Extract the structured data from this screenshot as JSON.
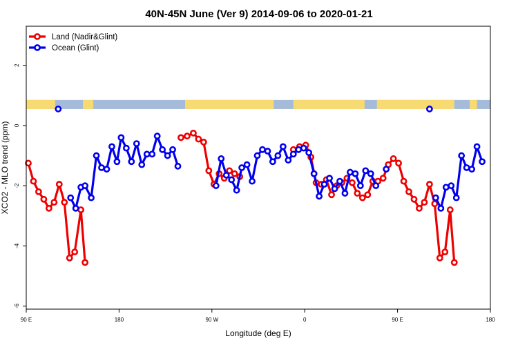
{
  "chart_data": {
    "type": "line",
    "title": "40N-45N June (Ver 9)   2014-09-06 to 2020-01-21",
    "xlabel": "Longitude (deg E)",
    "ylabel": "XCO2 - MLO trend (ppm)",
    "xlim": [
      90,
      540
    ],
    "ylim": [
      -6.1,
      3.3
    ],
    "x_ticks": [
      {
        "value": 90,
        "label": "90 E"
      },
      {
        "value": 180,
        "label": "180"
      },
      {
        "value": 270,
        "label": "90 W"
      },
      {
        "value": 360,
        "label": "0"
      },
      {
        "value": 450,
        "label": "90 E"
      },
      {
        "value": 540,
        "label": "180"
      }
    ],
    "y_ticks": [
      {
        "value": 2,
        "label": "2"
      },
      {
        "value": 0,
        "label": "0"
      },
      {
        "value": -2,
        "label": "-2"
      },
      {
        "value": -4,
        "label": "-4"
      },
      {
        "value": -6,
        "label": "-6"
      }
    ],
    "grid": false,
    "legend_position": "top-left",
    "land_strip": {
      "y_range": [
        0.55,
        0.85
      ],
      "ocean_color": "#a4bcda",
      "land_color": "#f8da72",
      "land_ranges": [
        [
          90,
          118
        ],
        [
          145,
          155
        ],
        [
          244,
          330
        ],
        [
          349,
          418
        ],
        [
          430,
          505
        ],
        [
          520,
          527
        ]
      ]
    },
    "series": [
      {
        "name": "Land (Nadir&Glint)",
        "color": "#ee0000",
        "segments": [
          [
            [
              92,
              -1.25
            ],
            [
              97,
              -1.85
            ],
            [
              102,
              -2.2
            ],
            [
              107,
              -2.45
            ],
            [
              112,
              -2.75
            ],
            [
              117,
              -2.55
            ],
            [
              122,
              -1.95
            ],
            [
              127,
              -2.55
            ],
            [
              132,
              -4.4
            ],
            [
              137,
              -4.2
            ],
            [
              143,
              -2.8
            ],
            [
              147,
              -4.55
            ]
          ],
          [
            [
              240,
              -0.4
            ],
            [
              246,
              -0.35
            ],
            [
              252,
              -0.25
            ],
            [
              257,
              -0.45
            ],
            [
              262,
              -0.55
            ],
            [
              267,
              -1.5
            ],
            [
              272,
              -1.95
            ],
            [
              277,
              -1.6
            ],
            [
              282,
              -1.75
            ],
            [
              287,
              -1.5
            ],
            [
              292,
              -1.6
            ],
            [
              297,
              -1.7
            ]
          ],
          [
            [
              349,
              -0.8
            ],
            [
              355,
              -0.7
            ],
            [
              361,
              -0.65
            ],
            [
              366,
              -1.05
            ],
            [
              371,
              -1.9
            ],
            [
              376,
              -1.95
            ],
            [
              381,
              -1.8
            ],
            [
              386,
              -2.3
            ],
            [
              391,
              -2.0
            ],
            [
              396,
              -1.9
            ],
            [
              401,
              -1.75
            ],
            [
              406,
              -1.9
            ],
            [
              411,
              -2.25
            ],
            [
              416,
              -2.4
            ],
            [
              421,
              -2.3
            ],
            [
              426,
              -1.85
            ],
            [
              431,
              -1.85
            ],
            [
              436,
              -1.75
            ],
            [
              441,
              -1.3
            ],
            [
              446,
              -1.1
            ],
            [
              451,
              -1.25
            ],
            [
              456,
              -1.85
            ],
            [
              461,
              -2.2
            ],
            [
              466,
              -2.45
            ],
            [
              471,
              -2.75
            ],
            [
              476,
              -2.55
            ],
            [
              481,
              -1.95
            ],
            [
              486,
              -2.6
            ],
            [
              491,
              -4.4
            ],
            [
              496,
              -4.2
            ],
            [
              501,
              -2.8
            ],
            [
              505,
              -4.55
            ]
          ]
        ]
      },
      {
        "name": "Ocean (Glint)",
        "color": "#0000ee",
        "segments": [
          [
            [
              121,
              0.55
            ]
          ],
          [
            [
              133,
              -2.4
            ],
            [
              138,
              -2.75
            ],
            [
              143,
              -2.05
            ],
            [
              147,
              -2.0
            ],
            [
              153,
              -2.4
            ],
            [
              158,
              -1.0
            ],
            [
              163,
              -1.4
            ],
            [
              168,
              -1.45
            ],
            [
              173,
              -0.7
            ],
            [
              178,
              -1.2
            ],
            [
              182,
              -0.4
            ],
            [
              187,
              -0.75
            ],
            [
              192,
              -1.2
            ],
            [
              197,
              -0.6
            ],
            [
              202,
              -1.3
            ],
            [
              207,
              -0.95
            ],
            [
              212,
              -0.95
            ],
            [
              217,
              -0.35
            ],
            [
              222,
              -0.8
            ],
            [
              227,
              -1.0
            ],
            [
              232,
              -0.8
            ],
            [
              237,
              -1.35
            ]
          ],
          [
            [
              274,
              -2.0
            ],
            [
              279,
              -1.1
            ],
            [
              284,
              -1.65
            ],
            [
              289,
              -1.8
            ],
            [
              294,
              -2.15
            ],
            [
              299,
              -1.4
            ],
            [
              304,
              -1.3
            ],
            [
              309,
              -1.85
            ],
            [
              314,
              -1.0
            ],
            [
              319,
              -0.8
            ],
            [
              324,
              -0.85
            ],
            [
              329,
              -1.2
            ],
            [
              334,
              -1.0
            ],
            [
              339,
              -0.7
            ],
            [
              344,
              -1.15
            ],
            [
              349,
              -0.95
            ],
            [
              354,
              -0.8
            ],
            [
              359,
              -0.75
            ],
            [
              364,
              -0.9
            ],
            [
              369,
              -1.6
            ],
            [
              374,
              -2.35
            ],
            [
              379,
              -1.95
            ],
            [
              384,
              -1.75
            ],
            [
              389,
              -2.1
            ],
            [
              394,
              -1.85
            ],
            [
              399,
              -2.25
            ],
            [
              404,
              -1.55
            ],
            [
              409,
              -1.6
            ],
            [
              414,
              -2.0
            ],
            [
              419,
              -1.5
            ],
            [
              424,
              -1.6
            ],
            [
              429,
              -2.0
            ]
          ],
          [
            [
              439,
              -1.45
            ]
          ],
          [
            [
              481,
              0.55
            ]
          ],
          [
            [
              487,
              -2.4
            ],
            [
              492,
              -2.75
            ],
            [
              497,
              -2.05
            ],
            [
              502,
              -2.0
            ],
            [
              507,
              -2.4
            ],
            [
              512,
              -1.0
            ],
            [
              517,
              -1.4
            ],
            [
              522,
              -1.45
            ],
            [
              527,
              -0.7
            ],
            [
              532,
              -1.2
            ]
          ]
        ]
      }
    ]
  }
}
